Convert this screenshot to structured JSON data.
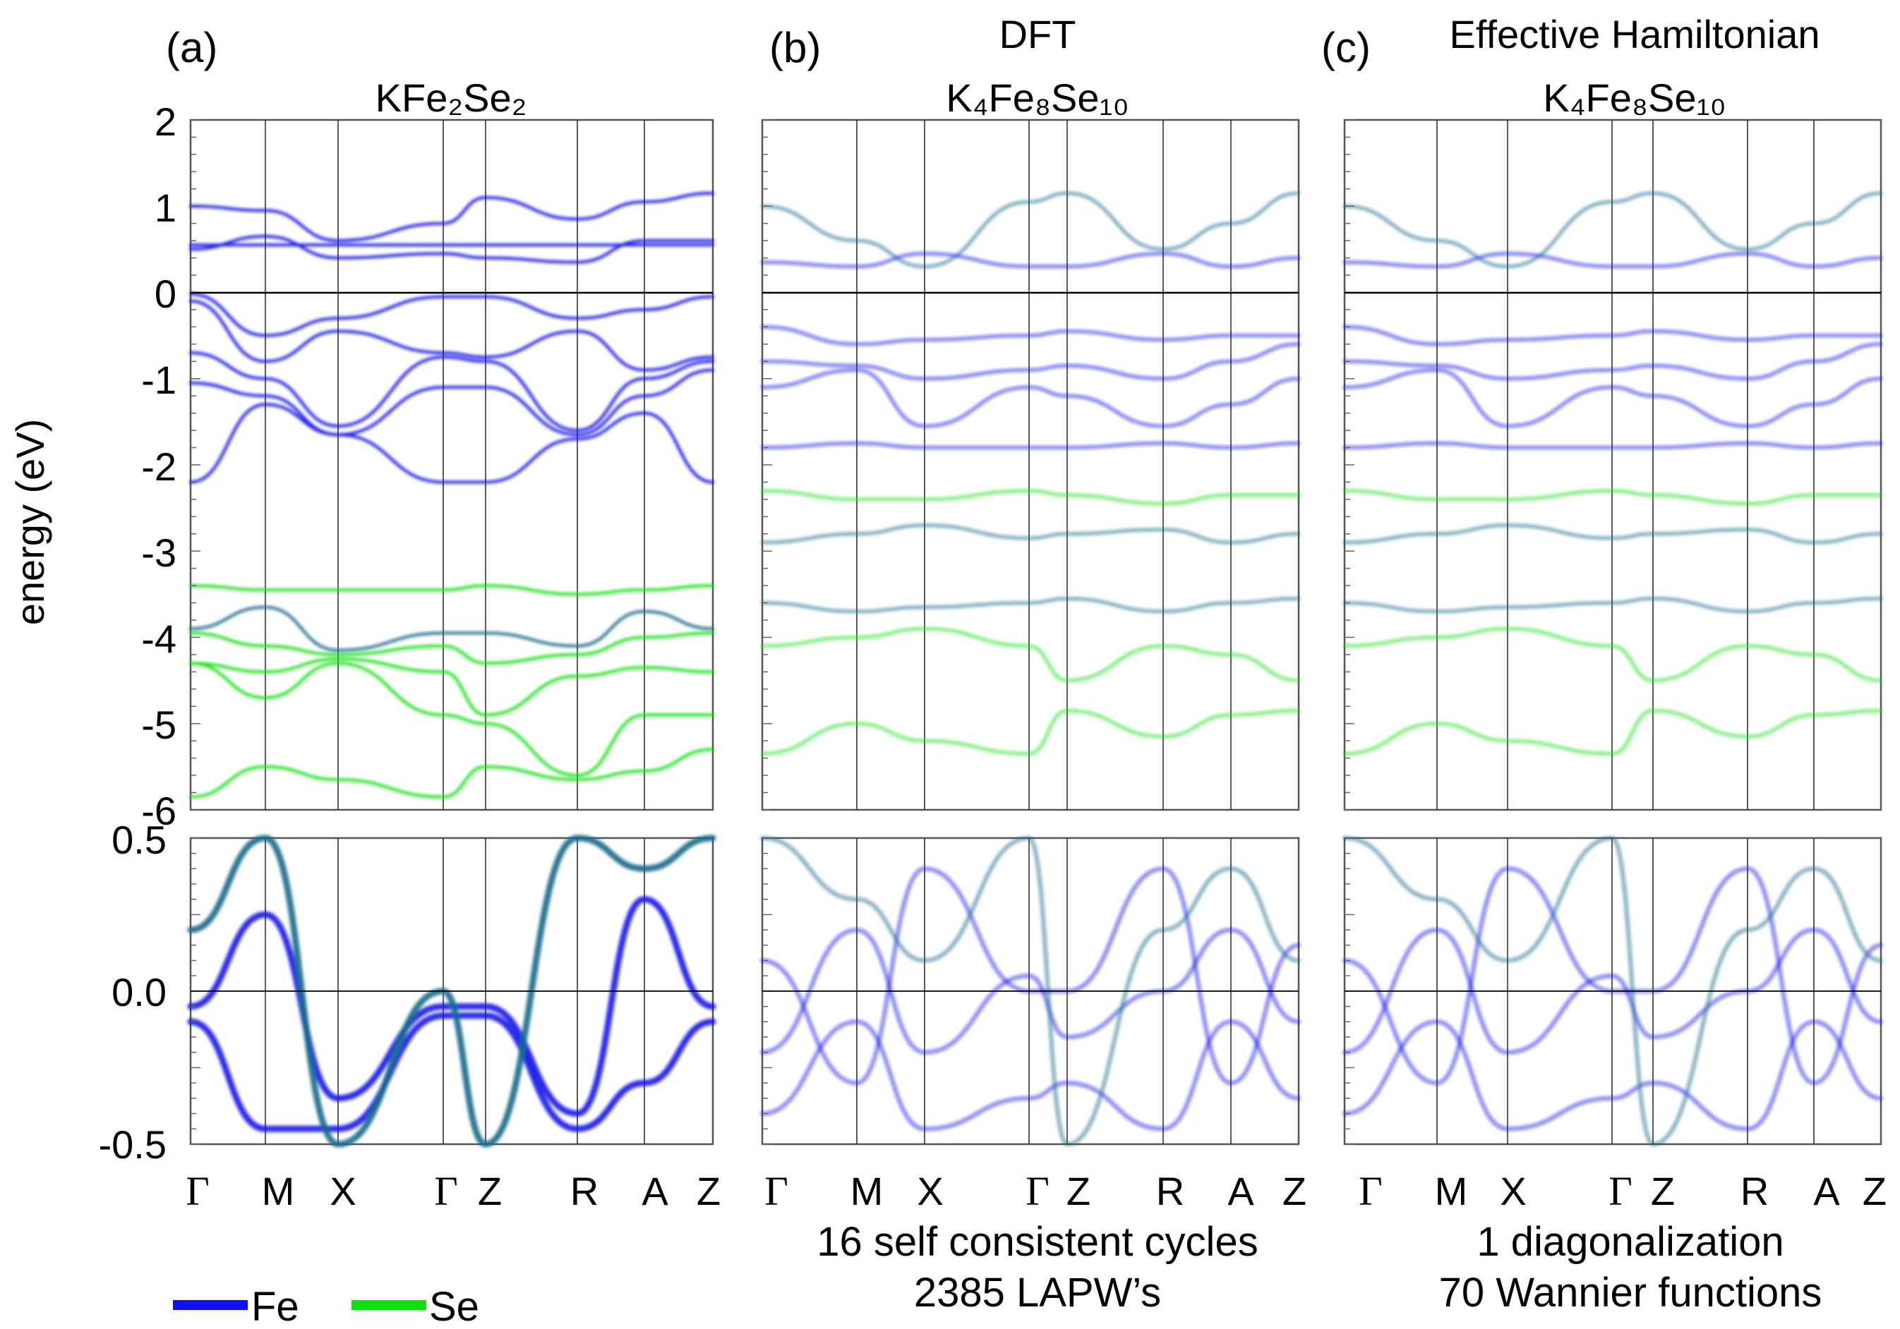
{
  "legend": [
    {
      "name": "Fe",
      "color": "#1010e8"
    },
    {
      "name": "Se",
      "color": "#10e010"
    }
  ],
  "colors": {
    "fe": "#1414e6",
    "se": "#14e014",
    "mixed": "#1a6a8a",
    "axis": "#555555",
    "fermi": "#000000"
  },
  "chart_data": [
    {
      "type": "line",
      "id": "a",
      "panel_label": "(a)",
      "title_line1": "",
      "title_formula": "KFe₂Se₂",
      "footer_line1": "",
      "footer_line2": "",
      "ylabel": "energy (eV)",
      "k_path": [
        "Γ",
        "M",
        "X",
        "Γ",
        "Z",
        "R",
        "A",
        "Z"
      ],
      "main": {
        "ylim": [
          -6,
          2
        ],
        "yticks": [
          "2",
          "1",
          "0",
          "-1",
          "-2",
          "-3",
          "-4",
          "-5",
          "-6"
        ],
        "series": [
          {
            "orbital": "fe",
            "values": [
              1.0,
              0.95,
              0.6,
              0.8,
              1.1,
              0.85,
              1.05,
              1.15
            ]
          },
          {
            "orbital": "fe",
            "values": [
              0.55,
              0.55,
              0.55,
              0.55,
              0.55,
              0.55,
              0.55,
              0.55
            ]
          },
          {
            "orbital": "fe",
            "values": [
              0.5,
              0.65,
              0.4,
              0.45,
              0.4,
              0.35,
              0.6,
              0.6
            ]
          },
          {
            "orbital": "fe",
            "values": [
              -0.02,
              -0.5,
              -0.3,
              -0.05,
              -0.05,
              -0.3,
              -0.2,
              -0.05
            ]
          },
          {
            "orbital": "fe",
            "values": [
              -0.1,
              -0.8,
              -0.45,
              -0.7,
              -0.75,
              -0.45,
              -0.9,
              -0.75
            ]
          },
          {
            "orbital": "fe",
            "values": [
              -0.7,
              -1.0,
              -1.55,
              -0.75,
              -0.8,
              -1.6,
              -1.0,
              -0.8
            ]
          },
          {
            "orbital": "fe",
            "values": [
              -1.05,
              -1.2,
              -1.65,
              -1.1,
              -1.1,
              -1.65,
              -1.2,
              -0.9
            ]
          },
          {
            "orbital": "fe",
            "values": [
              -2.2,
              -1.3,
              -1.65,
              -2.2,
              -2.2,
              -1.7,
              -1.4,
              -2.2
            ]
          },
          {
            "orbital": "mixed",
            "values": [
              -3.9,
              -3.65,
              -4.15,
              -3.95,
              -3.95,
              -4.1,
              -3.7,
              -3.9
            ]
          },
          {
            "orbital": "se",
            "values": [
              -3.4,
              -3.45,
              -3.45,
              -3.45,
              -3.4,
              -3.5,
              -3.45,
              -3.4
            ]
          },
          {
            "orbital": "se",
            "values": [
              -3.95,
              -4.1,
              -4.2,
              -4.1,
              -4.3,
              -4.2,
              -4.0,
              -3.95
            ]
          },
          {
            "orbital": "se",
            "values": [
              -4.3,
              -4.4,
              -4.25,
              -4.4,
              -4.9,
              -4.45,
              -4.35,
              -4.4
            ]
          },
          {
            "orbital": "se",
            "values": [
              -4.3,
              -4.7,
              -4.3,
              -4.9,
              -5.0,
              -5.6,
              -4.9,
              -4.9
            ]
          },
          {
            "orbital": "se",
            "values": [
              -5.85,
              -5.5,
              -5.65,
              -5.85,
              -5.5,
              -5.65,
              -5.55,
              -5.3
            ]
          }
        ]
      },
      "zoom": {
        "ylim": [
          -0.5,
          0.5
        ],
        "yticks": [
          "0.5",
          "0.0",
          "-0.5"
        ],
        "series": [
          {
            "orbital": "fe",
            "values": [
              -0.05,
              0.25,
              -0.35,
              -0.05,
              -0.05,
              -0.4,
              0.3,
              -0.05
            ]
          },
          {
            "orbital": "fe",
            "values": [
              -0.1,
              -0.45,
              -0.45,
              -0.08,
              -0.08,
              -0.45,
              -0.3,
              -0.1
            ]
          },
          {
            "orbital": "mixed",
            "values": [
              0.2,
              0.5,
              -0.5,
              0.0,
              -0.5,
              0.5,
              0.4,
              0.5
            ]
          }
        ]
      }
    },
    {
      "type": "line",
      "id": "b",
      "panel_label": "(b)",
      "title_line1": "DFT",
      "title_formula": "K₄Fe₈Se₁₀",
      "footer_line1": "16 self consistent cycles",
      "footer_line2": "2385 LAPW’s",
      "k_path": [
        "Γ",
        "M",
        "X",
        "Γ",
        "Z",
        "R",
        "A",
        "Z"
      ],
      "main": {
        "ylim": [
          -6,
          2
        ],
        "series": [
          {
            "orbital": "mixed",
            "values": [
              1.0,
              0.6,
              0.3,
              1.05,
              1.15,
              0.5,
              0.8,
              1.15
            ]
          },
          {
            "orbital": "fe",
            "values": [
              0.35,
              0.3,
              0.45,
              0.3,
              0.3,
              0.45,
              0.3,
              0.4
            ]
          },
          {
            "orbital": "fe",
            "values": [
              -0.4,
              -0.6,
              -0.55,
              -0.5,
              -0.45,
              -0.55,
              -0.5,
              -0.5
            ]
          },
          {
            "orbital": "fe",
            "values": [
              -0.8,
              -0.85,
              -1.0,
              -0.9,
              -0.85,
              -1.0,
              -0.8,
              -0.6
            ]
          },
          {
            "orbital": "fe",
            "values": [
              -1.1,
              -0.9,
              -1.55,
              -1.1,
              -1.2,
              -1.55,
              -1.3,
              -1.0
            ]
          },
          {
            "orbital": "fe",
            "values": [
              -1.8,
              -1.75,
              -1.8,
              -1.8,
              -1.8,
              -1.75,
              -1.8,
              -1.75
            ]
          },
          {
            "orbital": "se",
            "values": [
              -2.3,
              -2.4,
              -2.4,
              -2.3,
              -2.35,
              -2.45,
              -2.35,
              -2.35
            ]
          },
          {
            "orbital": "mixed",
            "values": [
              -2.9,
              -2.8,
              -2.7,
              -2.85,
              -2.8,
              -2.75,
              -2.9,
              -2.8
            ]
          },
          {
            "orbital": "mixed",
            "values": [
              -3.6,
              -3.7,
              -3.65,
              -3.6,
              -3.55,
              -3.7,
              -3.6,
              -3.55
            ]
          },
          {
            "orbital": "se",
            "values": [
              -4.1,
              -4.0,
              -3.9,
              -4.1,
              -4.5,
              -4.1,
              -4.2,
              -4.5
            ]
          },
          {
            "orbital": "se",
            "values": [
              -5.35,
              -5.0,
              -5.2,
              -5.35,
              -4.85,
              -5.15,
              -4.9,
              -4.85
            ]
          }
        ]
      },
      "zoom": {
        "ylim": [
          -0.5,
          0.5
        ],
        "series": [
          {
            "orbital": "fe",
            "values": [
              0.1,
              -0.3,
              0.4,
              0.0,
              0.0,
              0.4,
              -0.3,
              0.15
            ]
          },
          {
            "orbital": "fe",
            "values": [
              -0.2,
              0.2,
              -0.2,
              0.05,
              -0.15,
              0.0,
              0.2,
              -0.1
            ]
          },
          {
            "orbital": "fe",
            "values": [
              -0.4,
              -0.1,
              -0.45,
              -0.35,
              -0.3,
              -0.45,
              -0.1,
              -0.35
            ]
          },
          {
            "orbital": "mixed",
            "values": [
              0.5,
              0.3,
              0.1,
              0.5,
              -0.5,
              0.2,
              0.4,
              0.1
            ]
          }
        ]
      }
    },
    {
      "type": "line",
      "id": "c",
      "panel_label": "(c)",
      "title_line1": "Effective Hamiltonian",
      "title_formula": "K₄Fe₈Se₁₀",
      "footer_line1": "1 diagonalization",
      "footer_line2": "70 Wannier functions",
      "k_path": [
        "Γ",
        "M",
        "X",
        "Γ",
        "Z",
        "R",
        "A",
        "Z"
      ],
      "main": {
        "ylim": [
          -6,
          2
        ],
        "series": [
          {
            "orbital": "mixed",
            "values": [
              1.0,
              0.6,
              0.3,
              1.05,
              1.15,
              0.5,
              0.8,
              1.15
            ]
          },
          {
            "orbital": "fe",
            "values": [
              0.35,
              0.3,
              0.45,
              0.3,
              0.3,
              0.45,
              0.3,
              0.4
            ]
          },
          {
            "orbital": "fe",
            "values": [
              -0.4,
              -0.6,
              -0.55,
              -0.5,
              -0.45,
              -0.55,
              -0.5,
              -0.5
            ]
          },
          {
            "orbital": "fe",
            "values": [
              -0.8,
              -0.85,
              -1.0,
              -0.9,
              -0.85,
              -1.0,
              -0.8,
              -0.6
            ]
          },
          {
            "orbital": "fe",
            "values": [
              -1.1,
              -0.9,
              -1.55,
              -1.1,
              -1.2,
              -1.55,
              -1.3,
              -1.0
            ]
          },
          {
            "orbital": "fe",
            "values": [
              -1.8,
              -1.75,
              -1.8,
              -1.8,
              -1.8,
              -1.75,
              -1.8,
              -1.75
            ]
          },
          {
            "orbital": "se",
            "values": [
              -2.3,
              -2.4,
              -2.4,
              -2.3,
              -2.35,
              -2.45,
              -2.35,
              -2.35
            ]
          },
          {
            "orbital": "mixed",
            "values": [
              -2.9,
              -2.8,
              -2.7,
              -2.85,
              -2.8,
              -2.75,
              -2.9,
              -2.8
            ]
          },
          {
            "orbital": "mixed",
            "values": [
              -3.6,
              -3.7,
              -3.65,
              -3.6,
              -3.55,
              -3.7,
              -3.6,
              -3.55
            ]
          },
          {
            "orbital": "se",
            "values": [
              -4.1,
              -4.0,
              -3.9,
              -4.1,
              -4.5,
              -4.1,
              -4.2,
              -4.5
            ]
          },
          {
            "orbital": "se",
            "values": [
              -5.35,
              -5.0,
              -5.2,
              -5.35,
              -4.85,
              -5.15,
              -4.9,
              -4.85
            ]
          }
        ]
      },
      "zoom": {
        "ylim": [
          -0.5,
          0.5
        ],
        "series": [
          {
            "orbital": "fe",
            "values": [
              0.1,
              -0.3,
              0.4,
              0.0,
              0.0,
              0.4,
              -0.3,
              0.15
            ]
          },
          {
            "orbital": "fe",
            "values": [
              -0.2,
              0.2,
              -0.2,
              0.05,
              -0.15,
              0.0,
              0.2,
              -0.1
            ]
          },
          {
            "orbital": "fe",
            "values": [
              -0.4,
              -0.1,
              -0.45,
              -0.35,
              -0.3,
              -0.45,
              -0.1,
              -0.35
            ]
          },
          {
            "orbital": "mixed",
            "values": [
              0.5,
              0.3,
              0.1,
              0.5,
              -0.5,
              0.2,
              0.4,
              0.1
            ]
          }
        ]
      }
    }
  ]
}
